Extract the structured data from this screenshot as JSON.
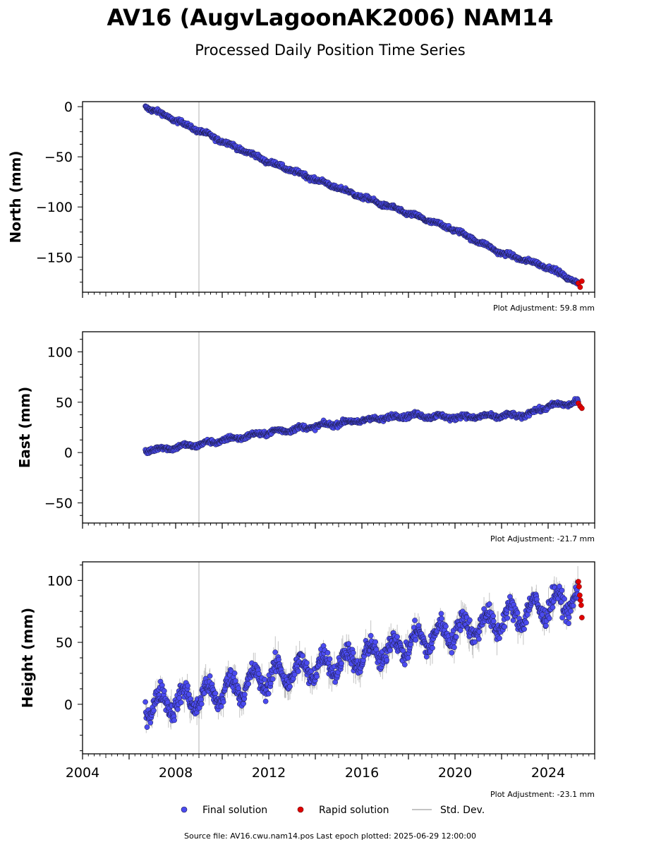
{
  "title": "AV16 (AugvLagoonAK2006) NAM14",
  "subtitle": "Processed Daily Position Time Series",
  "legend": {
    "final": "Final solution",
    "rapid": "Rapid solution",
    "std": "Std. Dev."
  },
  "footer": "Source file: AV16.cwu.nam14.pos  Last epoch plotted: 2025-06-29 12:00:00",
  "colors": {
    "final": "#4b4bf0",
    "rapid": "#e00000",
    "edge": "#1a1a40",
    "std": "#b0b0b0",
    "event_line": "#cccccc"
  },
  "chart_data": [
    {
      "type": "scatter",
      "ylabel": "North (mm)",
      "adjustment_label": "Plot Adjustment: 59.8 mm",
      "xlim": [
        2004,
        2026
      ],
      "ylim": [
        -185,
        5
      ],
      "yticks": [
        0,
        -50,
        -100,
        -150
      ],
      "event_line_x": 2009.0,
      "final_trend": [
        [
          2006.7,
          0
        ],
        [
          2009.0,
          -24
        ],
        [
          2012.0,
          -55
        ],
        [
          2016.0,
          -90
        ],
        [
          2020.0,
          -123
        ],
        [
          2022.0,
          -146
        ],
        [
          2024.0,
          -160
        ],
        [
          2025.3,
          -176
        ]
      ],
      "rapid": {
        "x_range": [
          2025.3,
          2025.45
        ],
        "y": [
          -176,
          -180,
          -174
        ]
      }
    },
    {
      "type": "scatter",
      "ylabel": "East (mm)",
      "adjustment_label": "Plot Adjustment: -21.7 mm",
      "xlim": [
        2004,
        2026
      ],
      "ylim": [
        -70,
        120
      ],
      "yticks": [
        100,
        50,
        0,
        -50
      ],
      "event_line_x": 2009.0,
      "final_trend": [
        [
          2006.7,
          2
        ],
        [
          2009.0,
          8
        ],
        [
          2012.0,
          20
        ],
        [
          2016.0,
          32
        ],
        [
          2018.0,
          37
        ],
        [
          2020.0,
          35
        ],
        [
          2023.0,
          37
        ],
        [
          2024.0,
          46
        ],
        [
          2025.3,
          50
        ]
      ],
      "rapid": {
        "x_range": [
          2025.3,
          2025.45
        ],
        "y": [
          49,
          46,
          44
        ]
      }
    },
    {
      "type": "scatter",
      "ylabel": "Height (mm)",
      "adjustment_label": "Plot Adjustment: -23.1 mm",
      "xlim": [
        2004,
        2026
      ],
      "ylim": [
        -40,
        115
      ],
      "yticks": [
        100,
        50,
        0
      ],
      "xticks": [
        2004,
        2008,
        2012,
        2016,
        2020,
        2024
      ],
      "event_line_x": 2009.0,
      "final_trend": [
        [
          2006.7,
          0
        ],
        [
          2009.0,
          5
        ],
        [
          2012.0,
          22
        ],
        [
          2016.0,
          38
        ],
        [
          2020.0,
          60
        ],
        [
          2022.0,
          68
        ],
        [
          2024.0,
          80
        ],
        [
          2025.3,
          85
        ]
      ],
      "rapid": {
        "x_range": [
          2025.3,
          2025.45
        ],
        "y": [
          99,
          95,
          88,
          84,
          80,
          70
        ]
      }
    }
  ]
}
